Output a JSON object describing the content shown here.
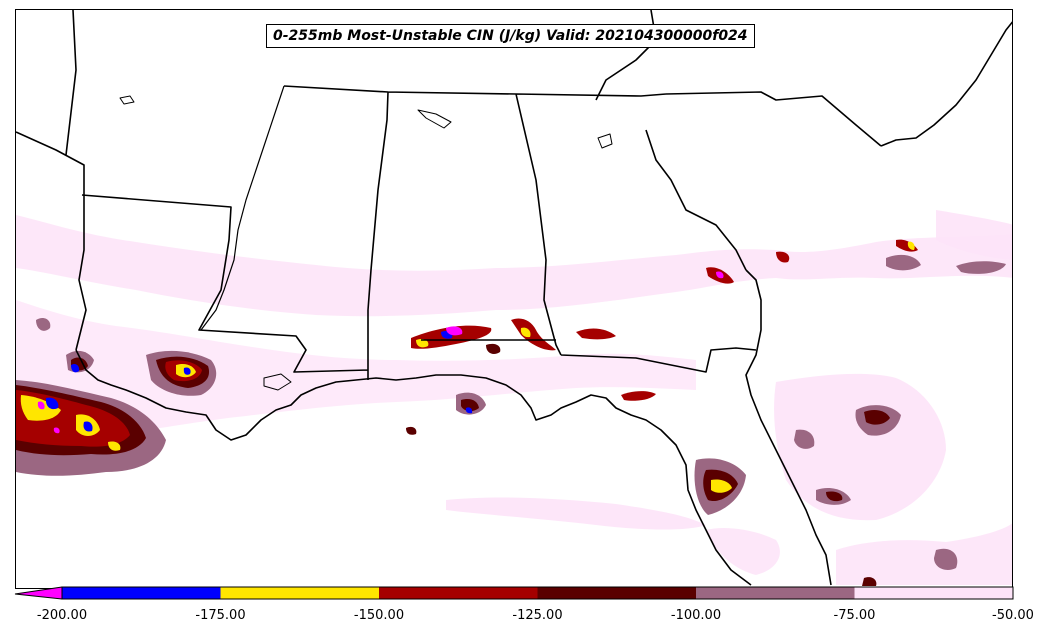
{
  "title": "0-255mb Most-Unstable CIN (J/kg) Valid: 202104300000f024",
  "colorbar": {
    "min": -200,
    "max": -50,
    "extend": "min",
    "bins": [
      {
        "from": -200,
        "to": -175,
        "color": "#0000ff"
      },
      {
        "from": -175,
        "to": -150,
        "color": "#ffe600"
      },
      {
        "from": -150,
        "to": -125,
        "color": "#a50000"
      },
      {
        "from": -125,
        "to": -100,
        "color": "#5a0000"
      },
      {
        "from": -100,
        "to": -75,
        "color": "#9b6782"
      },
      {
        "from": -75,
        "to": -50,
        "color": "#fde3f8"
      }
    ],
    "under_color": "#ff00ff",
    "tick_labels": [
      "-200.00",
      "-175.00",
      "-150.00",
      "-125.00",
      "-100.00",
      "-75.00",
      "-50.00"
    ]
  },
  "map": {
    "region": "Southeastern United States and northern Gulf of Mexico",
    "field": "Most-unstable CIN shaded",
    "borders": [
      "coastlines",
      "state-boundaries"
    ]
  }
}
